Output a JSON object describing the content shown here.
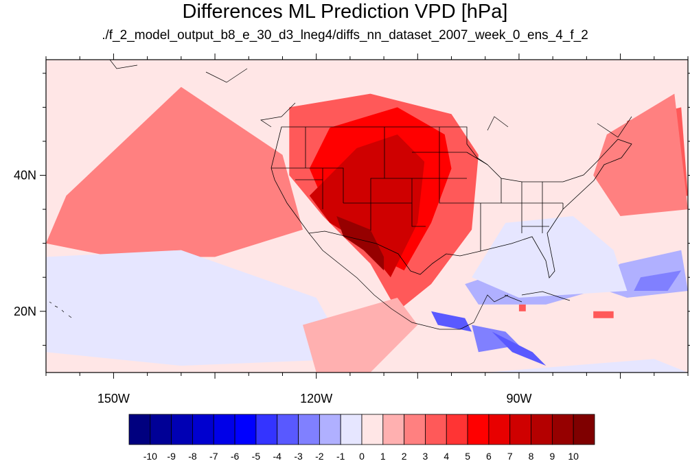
{
  "title": "Differences ML Prediction VPD [hPa]",
  "subtitle": "./f_2_model_output_b8_e_30_d3_lneg4/diffs_nn_dataset_2007_week_0_ens_4_f_2",
  "map": {
    "projection": "cylindrical-equidistant",
    "lon_range": [
      -160,
      -65
    ],
    "lat_range": [
      11,
      57
    ],
    "lon_ticks": [
      {
        "value": -150,
        "label": "150W"
      },
      {
        "value": -120,
        "label": "120W"
      },
      {
        "value": -90,
        "label": "90W"
      }
    ],
    "lat_ticks": [
      {
        "value": 40,
        "label": "40N"
      },
      {
        "value": 20,
        "label": "20N"
      }
    ],
    "regions": [
      {
        "level": 3,
        "lonlat": [
          [
            -150,
            37
          ],
          [
            -138,
            48
          ],
          [
            -130,
            45
          ],
          [
            -125,
            35
          ],
          [
            -132,
            32
          ],
          [
            -145,
            32
          ],
          [
            -152,
            33
          ]
        ]
      },
      {
        "level": 2,
        "lonlat": [
          [
            -157,
            37
          ],
          [
            -140,
            53
          ],
          [
            -125,
            43
          ],
          [
            -122,
            32
          ],
          [
            -135,
            28
          ],
          [
            -150,
            28
          ],
          [
            -160,
            30
          ]
        ]
      },
      {
        "level": 3,
        "lonlat": [
          [
            -124,
            50
          ],
          [
            -112,
            52
          ],
          [
            -100,
            49
          ],
          [
            -96,
            43
          ],
          [
            -97,
            32
          ],
          [
            -103,
            24
          ],
          [
            -108,
            20
          ],
          [
            -112,
            27
          ],
          [
            -119,
            34
          ],
          [
            -124,
            40
          ]
        ]
      },
      {
        "level": 5,
        "lonlat": [
          [
            -118,
            47
          ],
          [
            -108,
            50
          ],
          [
            -101,
            46
          ],
          [
            -100,
            41
          ],
          [
            -103,
            33
          ],
          [
            -107,
            26
          ],
          [
            -111,
            28
          ],
          [
            -118,
            34
          ],
          [
            -121,
            41
          ]
        ]
      },
      {
        "level": 7,
        "lonlat": [
          [
            -121,
            37
          ],
          [
            -114,
            44
          ],
          [
            -108,
            46
          ],
          [
            -104,
            42
          ],
          [
            -105,
            33
          ],
          [
            -109,
            25
          ],
          [
            -113,
            30
          ],
          [
            -118,
            33
          ]
        ]
      },
      {
        "level": 9,
        "lonlat": [
          [
            -117,
            34
          ],
          [
            -112,
            32
          ],
          [
            -110,
            28
          ],
          [
            -110,
            26
          ],
          [
            -113,
            29
          ],
          [
            -116,
            31
          ]
        ]
      },
      {
        "level": 3,
        "lonlat": [
          [
            -74,
            48
          ],
          [
            -66,
            50
          ],
          [
            -65,
            37
          ],
          [
            -70,
            36
          ],
          [
            -76,
            39
          ]
        ]
      },
      {
        "level": 2,
        "lonlat": [
          [
            -77,
            46
          ],
          [
            -67,
            52
          ],
          [
            -65,
            35
          ],
          [
            -75,
            34
          ],
          [
            -79,
            40
          ]
        ]
      },
      {
        "level": -2,
        "lonlat": [
          [
            -98,
            24
          ],
          [
            -92,
            26
          ],
          [
            -83,
            26
          ],
          [
            -79,
            23
          ],
          [
            -86,
            21
          ],
          [
            -96,
            21
          ]
        ]
      },
      {
        "level": -3,
        "lonlat": [
          [
            -97,
            18
          ],
          [
            -92,
            17
          ],
          [
            -90,
            15
          ],
          [
            -96,
            14
          ]
        ]
      },
      {
        "level": -4,
        "lonlat": [
          [
            -103,
            20
          ],
          [
            -98,
            19
          ],
          [
            -97,
            17
          ],
          [
            -102,
            18
          ]
        ]
      },
      {
        "level": -4,
        "lonlat": [
          [
            -94,
            17
          ],
          [
            -88,
            14
          ],
          [
            -86,
            12
          ],
          [
            -91,
            14
          ]
        ]
      },
      {
        "level": -2,
        "lonlat": [
          [
            -75,
            27
          ],
          [
            -66,
            29
          ],
          [
            -65,
            23
          ],
          [
            -74,
            22
          ],
          [
            -80,
            24
          ]
        ]
      },
      {
        "level": -3,
        "lonlat": [
          [
            -72,
            25
          ],
          [
            -66,
            26
          ],
          [
            -68,
            23
          ],
          [
            -73,
            23
          ]
        ]
      },
      {
        "level": -2,
        "lonlat": [
          [
            -146,
            23
          ],
          [
            -130,
            24
          ],
          [
            -122,
            18
          ],
          [
            -135,
            17
          ],
          [
            -147,
            19
          ]
        ]
      },
      {
        "level": -1,
        "lonlat": [
          [
            -160,
            28
          ],
          [
            -140,
            29
          ],
          [
            -120,
            22
          ],
          [
            -115,
            13
          ],
          [
            -140,
            12
          ],
          [
            -160,
            14
          ]
        ]
      },
      {
        "level": -1,
        "lonlat": [
          [
            -92,
            33
          ],
          [
            -82,
            34
          ],
          [
            -76,
            29
          ],
          [
            -74,
            23
          ],
          [
            -90,
            22
          ],
          [
            -97,
            25
          ]
        ]
      },
      {
        "level": -1,
        "lonlat": [
          [
            -95,
            11
          ],
          [
            -70,
            13
          ],
          [
            -65,
            11
          ],
          [
            -90,
            11
          ]
        ]
      },
      {
        "level": 3,
        "lonlat": [
          [
            -90,
            21
          ],
          [
            -89,
            21
          ],
          [
            -89,
            20
          ],
          [
            -90,
            20
          ]
        ]
      },
      {
        "level": 3,
        "lonlat": [
          [
            -79,
            20
          ],
          [
            -76,
            20
          ],
          [
            -76,
            19
          ],
          [
            -79,
            19
          ]
        ]
      },
      {
        "level": 1,
        "lonlat": [
          [
            -122,
            18
          ],
          [
            -108,
            22
          ],
          [
            -105,
            18
          ],
          [
            -112,
            11
          ],
          [
            -120,
            11
          ]
        ]
      }
    ]
  },
  "colorbar": {
    "levels": [
      "-10",
      "-9",
      "-8",
      "-7",
      "-6",
      "-5",
      "-4",
      "-3",
      "-2",
      "-1",
      "0",
      "1",
      "2",
      "3",
      "4",
      "5",
      "6",
      "7",
      "8",
      "9",
      "10"
    ],
    "colors": [
      "#00007f",
      "#000096",
      "#0000b4",
      "#0000cf",
      "#0000e8",
      "#0000ff",
      "#3434ff",
      "#5959ff",
      "#8080ff",
      "#b0b0ff",
      "#e6e6ff",
      "#ffe6e6",
      "#ffb0b0",
      "#ff8080",
      "#ff5959",
      "#ff3434",
      "#ff0000",
      "#e80000",
      "#cf0000",
      "#b40000",
      "#960000",
      "#7f0000"
    ]
  }
}
